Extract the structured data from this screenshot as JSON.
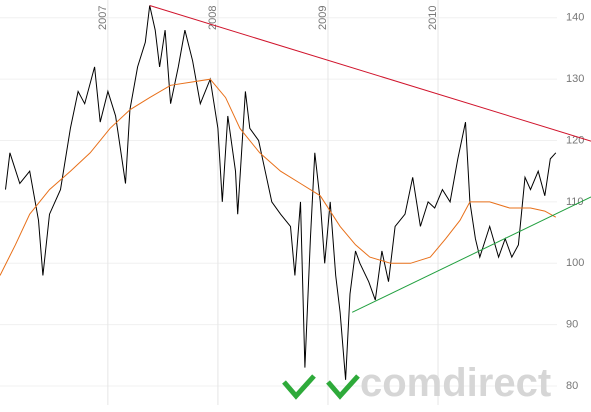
{
  "chart_data": {
    "type": "line",
    "watermark": "comdirect",
    "xlim": [
      2006.02,
      2011.39
    ],
    "ylim": [
      76.9,
      142.9
    ],
    "xticks": [
      2007,
      2008,
      2009,
      2010
    ],
    "yticks": [
      80,
      90,
      100,
      110,
      120,
      130,
      140
    ],
    "grid": true,
    "series": [
      {
        "color": "#000000",
        "width": 1,
        "x": [
          2006.07,
          2006.11,
          2006.2,
          2006.29,
          2006.37,
          2006.41,
          2006.47,
          2006.57,
          2006.66,
          2006.73,
          2006.79,
          2006.88,
          2006.93,
          2007.0,
          2007.07,
          2007.16,
          2007.2,
          2007.27,
          2007.34,
          2007.38,
          2007.43,
          2007.47,
          2007.52,
          2007.57,
          2007.64,
          2007.7,
          2007.77,
          2007.84,
          2007.93,
          2008.0,
          2008.04,
          2008.09,
          2008.16,
          2008.18,
          2008.25,
          2008.29,
          2008.37,
          2008.43,
          2008.49,
          2008.57,
          2008.66,
          2008.7,
          2008.75,
          2008.79,
          2008.84,
          2008.88,
          2008.93,
          2008.97,
          2009.02,
          2009.07,
          2009.11,
          2009.16,
          2009.2,
          2009.25,
          2009.29,
          2009.37,
          2009.43,
          2009.49,
          2009.55,
          2009.61,
          2009.7,
          2009.77,
          2009.84,
          2009.91,
          2009.97,
          2010.04,
          2010.11,
          2010.18,
          2010.25,
          2010.29,
          2010.34,
          2010.38,
          2010.47,
          2010.55,
          2010.61,
          2010.67,
          2010.73,
          2010.79,
          2010.84,
          2010.91,
          2010.97,
          2011.02,
          2011.07
        ],
        "values": [
          112,
          118,
          113,
          115,
          107,
          98,
          108,
          112,
          122,
          128,
          126,
          132,
          123,
          128,
          124,
          113,
          125,
          132,
          136,
          142,
          138,
          132,
          138,
          126,
          132,
          138,
          133,
          126,
          130,
          122,
          110,
          124,
          115,
          108,
          128,
          122,
          120,
          115,
          110,
          108,
          106,
          98,
          110,
          83,
          104,
          118,
          110,
          100,
          110,
          98,
          92,
          81,
          95,
          102,
          100,
          97,
          94,
          102,
          97,
          106,
          108,
          114,
          106,
          110,
          109,
          112,
          110,
          117,
          123,
          110,
          104,
          101,
          106,
          101,
          104,
          101,
          103,
          114,
          112,
          115,
          111,
          117,
          118
        ]
      },
      {
        "color": "#e8701a",
        "width": 1,
        "x": [
          2006.02,
          2006.16,
          2006.29,
          2006.47,
          2006.66,
          2006.84,
          2007.02,
          2007.2,
          2007.38,
          2007.57,
          2007.75,
          2007.93,
          2008.07,
          2008.2,
          2008.38,
          2008.57,
          2008.75,
          2008.93,
          2009.11,
          2009.25,
          2009.38,
          2009.57,
          2009.75,
          2009.93,
          2010.07,
          2010.2,
          2010.29,
          2010.47,
          2010.65,
          2010.84,
          2010.97,
          2011.07
        ],
        "values": [
          98,
          103,
          108,
          112,
          115,
          118,
          122,
          125,
          127,
          129,
          129.5,
          130,
          127,
          122,
          118,
          115,
          113,
          111,
          106,
          103,
          101,
          100,
          100,
          101,
          104,
          107,
          110,
          110,
          109,
          109,
          108.5,
          107.5
        ]
      },
      {
        "color": "#d0142c",
        "width": 1,
        "x": [
          2007.38,
          2011.39
        ],
        "values": [
          142,
          119.9
        ]
      },
      {
        "color": "#22a040",
        "width": 1,
        "x": [
          2009.22,
          2011.39
        ],
        "values": [
          92,
          110.8
        ]
      }
    ]
  }
}
